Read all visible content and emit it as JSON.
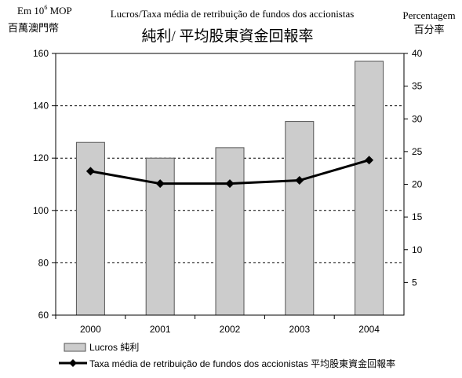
{
  "chart_data": {
    "type": "bar",
    "title": "Lucros/Taxa média de retribuição de fundos dos accionistas",
    "subtitle": "純利/ 平均股東資金回報率",
    "left_axis": {
      "unit_prefix": "Em 10",
      "unit_exponent": "6",
      "unit_suffix": " MOP",
      "unit_chinese": "百萬澳門幣",
      "ylim": [
        60,
        160
      ],
      "ticks": [
        "60",
        "80",
        "100",
        "120",
        "140",
        "160"
      ]
    },
    "right_axis": {
      "label": "Percentagem",
      "label_chinese": "百分率",
      "ylim": [
        0,
        40
      ],
      "ticks": [
        "5",
        "10",
        "15",
        "20",
        "25",
        "30",
        "35",
        "40"
      ]
    },
    "categories": [
      "2000",
      "2001",
      "2002",
      "2003",
      "2004"
    ],
    "series": [
      {
        "name": "Lucros 純利",
        "type": "bar",
        "axis": "left",
        "color": "#cccccc",
        "values": [
          126,
          120,
          124,
          134,
          157
        ]
      },
      {
        "name": "Taxa média de retribuição de fundos dos accionistas 平均股東資金回報率",
        "type": "line",
        "axis": "right",
        "color": "#000000",
        "values": [
          22.0,
          20.1,
          20.1,
          20.6,
          23.7
        ]
      }
    ],
    "grid": "dashed horizontal lines",
    "legend_position": "bottom-left"
  }
}
